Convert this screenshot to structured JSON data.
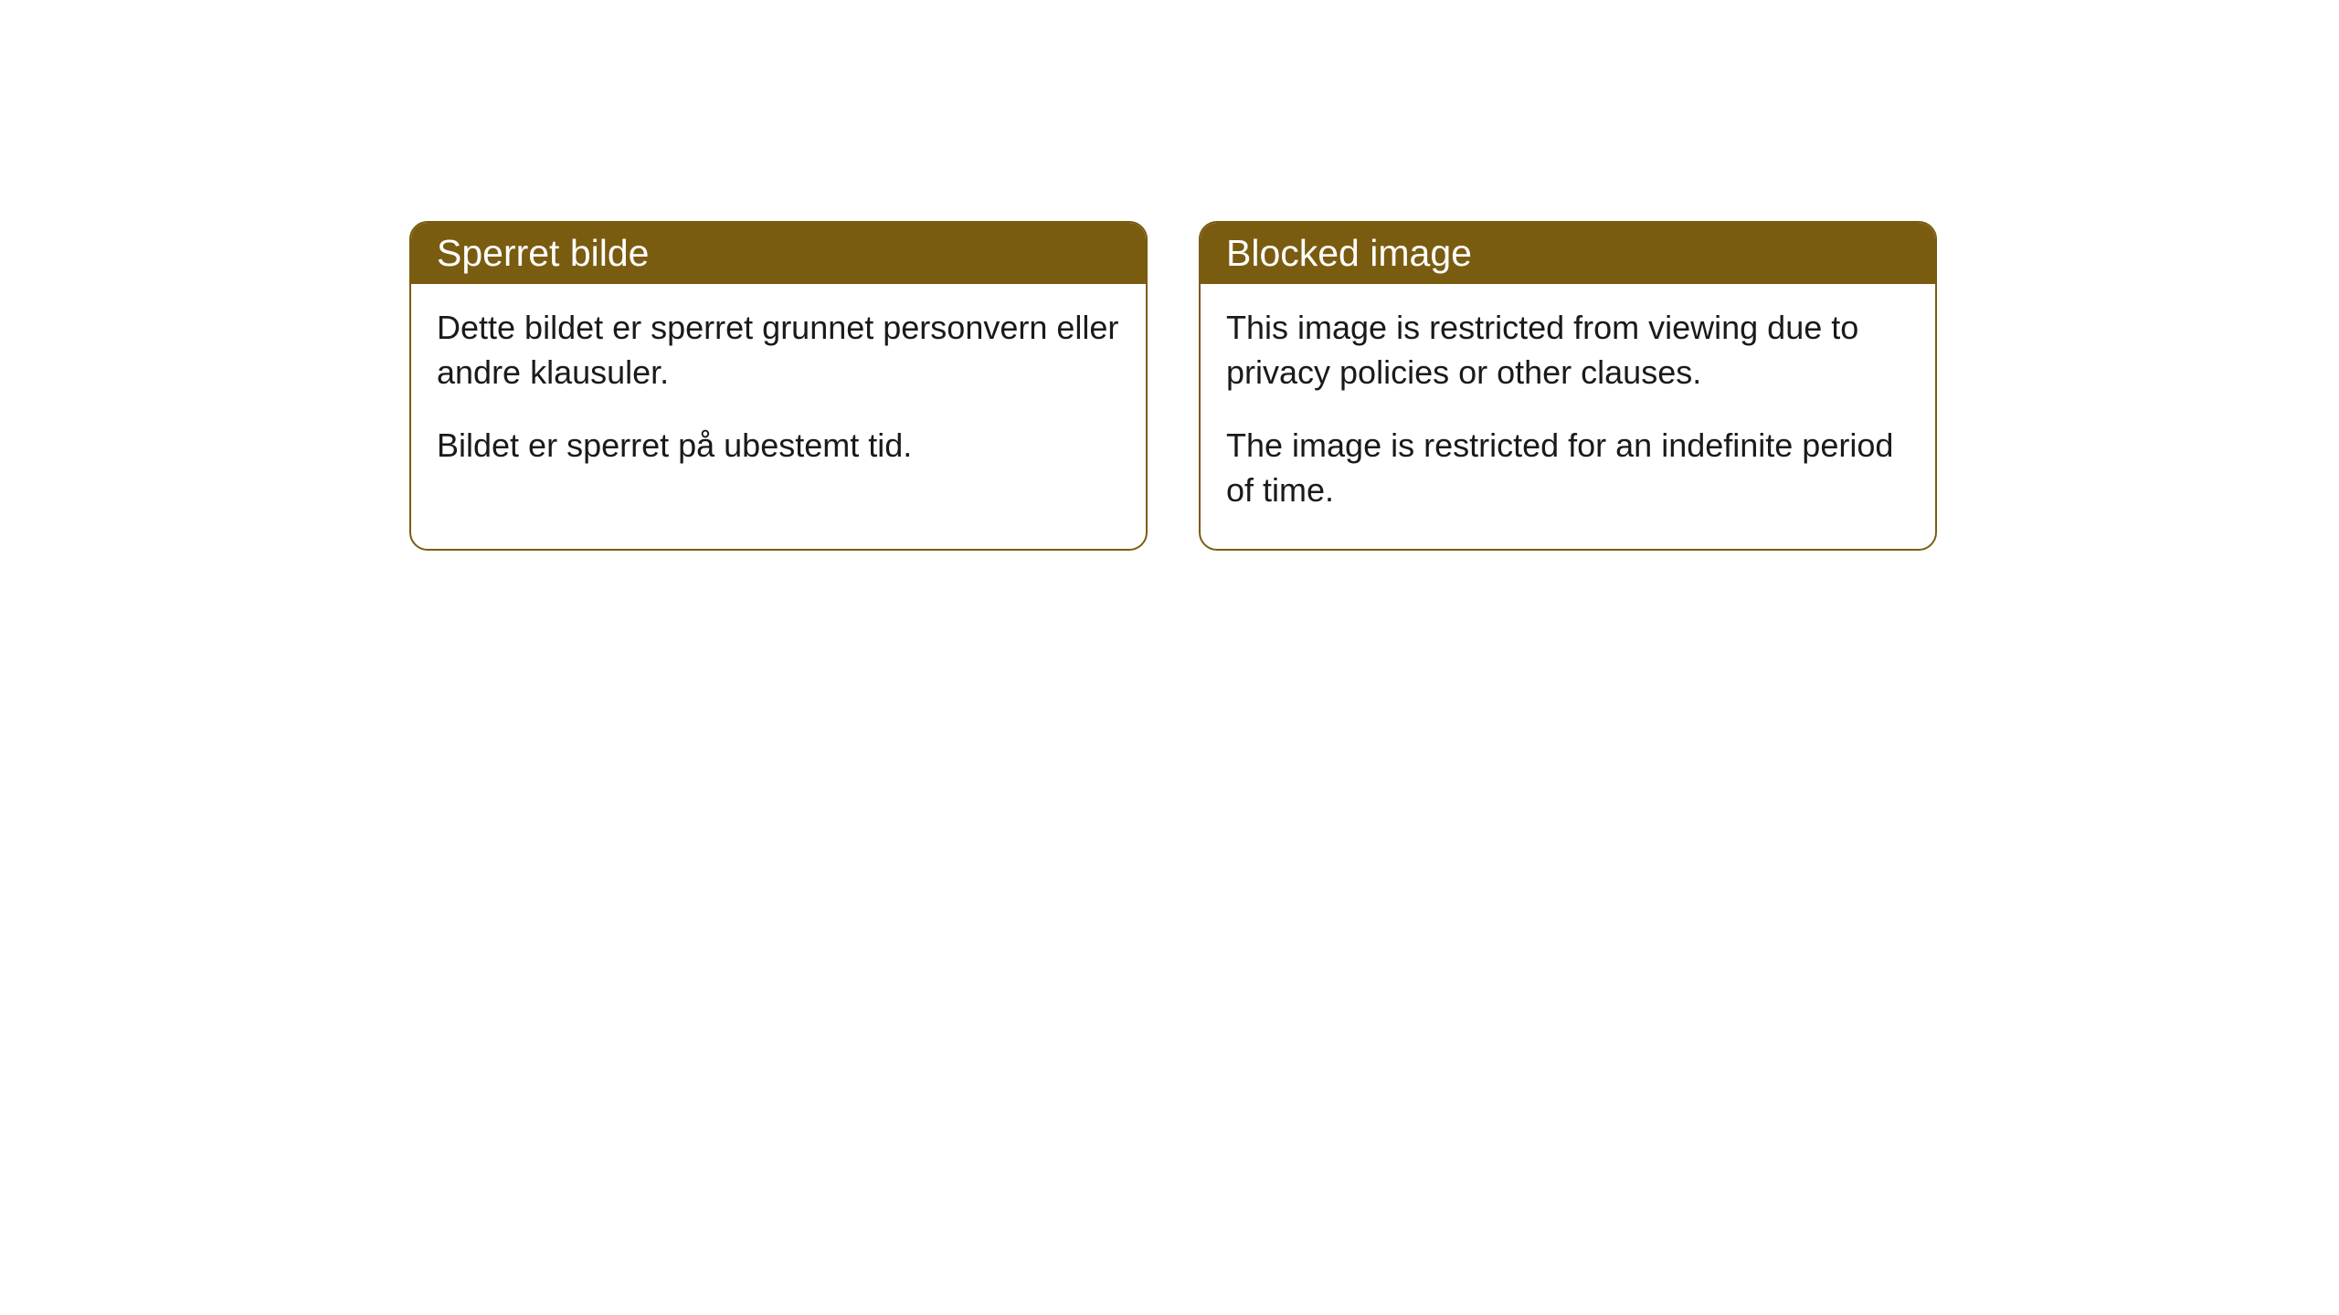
{
  "cards": [
    {
      "title": "Sperret bilde",
      "paragraph1": "Dette bildet er sperret grunnet personvern eller andre klausuler.",
      "paragraph2": "Bildet er sperret på ubestemt tid."
    },
    {
      "title": "Blocked image",
      "paragraph1": "This image is restricted from viewing due to privacy policies or other clauses.",
      "paragraph2": "The image is restricted for an indefinite period of time."
    }
  ],
  "styling": {
    "header_bg_color": "#7a5c11",
    "header_text_color": "#ffffff",
    "border_color": "#7a5c11",
    "body_bg_color": "#ffffff",
    "body_text_color": "#1a1a1a",
    "border_radius": 20,
    "header_fontsize": 41,
    "body_fontsize": 36
  }
}
